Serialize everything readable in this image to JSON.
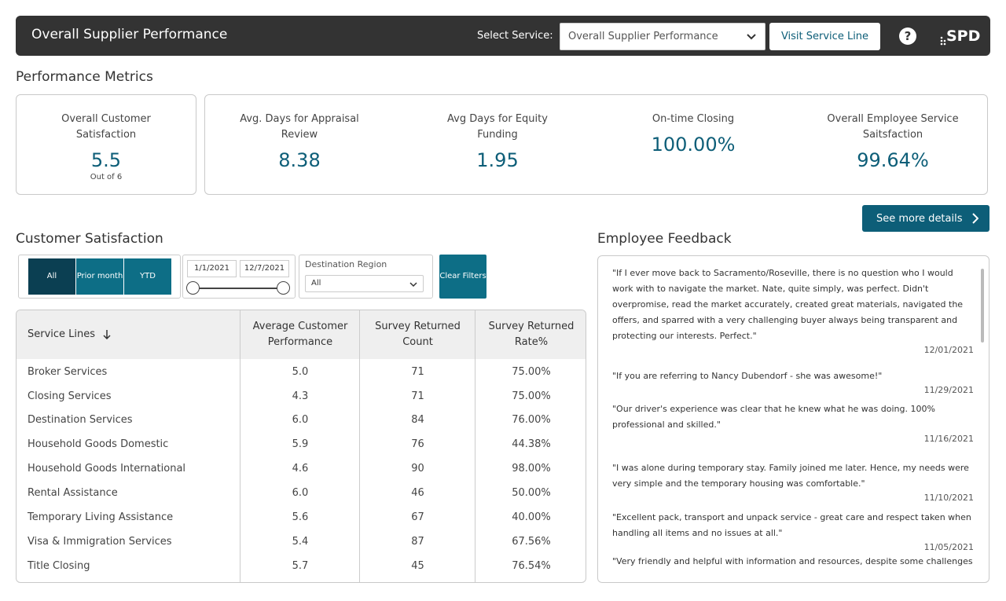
{
  "header": {
    "title": "Overall Supplier Performance",
    "select_label": "Select Service:",
    "select_value": "Overall Supplier Performance",
    "visit_button": "Visit Service Line",
    "help": "?",
    "logo": "SPD"
  },
  "performance": {
    "heading": "Performance Metrics",
    "satisfaction": {
      "label": "Overall Customer Satisfaction",
      "value": "5.5",
      "sub": "Out of 6"
    },
    "metrics": [
      {
        "label": "Avg. Days for Appraisal Review",
        "value": "8.38"
      },
      {
        "label": "Avg Days for Equity Funding",
        "value": "1.95"
      },
      {
        "label": "On-time Closing",
        "value": "100.00%"
      },
      {
        "label": "Overall Employee Service Saitsfaction",
        "value": "99.64%"
      }
    ],
    "details_button": "See more details"
  },
  "customer_satisfaction": {
    "heading": "Customer Satisfaction",
    "period_buttons": [
      "All",
      "Prior month",
      "YTD"
    ],
    "active_period": "All",
    "date_from": "1/1/2021",
    "date_to": "12/7/2021",
    "region_label": "Destination Region",
    "region_value": "All",
    "clear_button": "Clear Filters",
    "columns": [
      "Service Lines",
      "Average Customer Performance",
      "Survey Returned Count",
      "Survey Returned Rate%"
    ],
    "rows": [
      [
        "Broker Services",
        "5.0",
        "71",
        "75.00%"
      ],
      [
        "Closing Services",
        "4.3",
        "71",
        "75.00%"
      ],
      [
        "Destination Services",
        "6.0",
        "84",
        "76.00%"
      ],
      [
        "Household Goods Domestic",
        "5.9",
        "76",
        "44.38%"
      ],
      [
        "Household Goods International",
        "4.6",
        "90",
        "98.00%"
      ],
      [
        "Rental Assistance",
        "6.0",
        "46",
        "50.00%"
      ],
      [
        "Temporary Living Assistance",
        "5.6",
        "67",
        "40.00%"
      ],
      [
        "Visa & Immigration Services",
        "5.4",
        "87",
        "67.56%"
      ],
      [
        "Title Closing",
        "5.7",
        "45",
        "76.54%"
      ]
    ]
  },
  "feedback": {
    "heading": "Employee Feedback",
    "items": [
      {
        "quote": "\"If I ever move back to Sacramento/Roseville, there is no question who I would work with to navigate the market.  Nate, quite simply, was perfect.  Didn't overpromise, read the market accurately, created great materials, navigated the offers, and sparred with a very challenging buyer always being transparent and protecting our interests.  Perfect.\"",
        "date": "12/01/2021"
      },
      {
        "quote": "\"If you are referring to Nancy Dubendorf - she was awesome!\"",
        "date": "11/29/2021"
      },
      {
        "quote": "\"Our driver's experience was clear that he knew what he was doing.  100% professional and skilled.\"",
        "date": "11/16/2021"
      },
      {
        "quote": "\"I was alone during temporary stay. Family joined me later. Hence, my needs were very simple and the temporary housing was comfortable.\"",
        "date": "11/10/2021"
      },
      {
        "quote": "\"Excellent pack, transport and unpack service - great care and respect taken when handling all items and no issues at all.\"",
        "date": "11/05/2021"
      },
      {
        "quote": "\"Very friendly and helpful with information and resources, despite some challenges",
        "date": ""
      }
    ]
  },
  "colors": {
    "header_bg": "#333333",
    "accent": "#0d5e78",
    "accent_dark": "#0b3f52",
    "table_header_bg": "#efefef"
  }
}
